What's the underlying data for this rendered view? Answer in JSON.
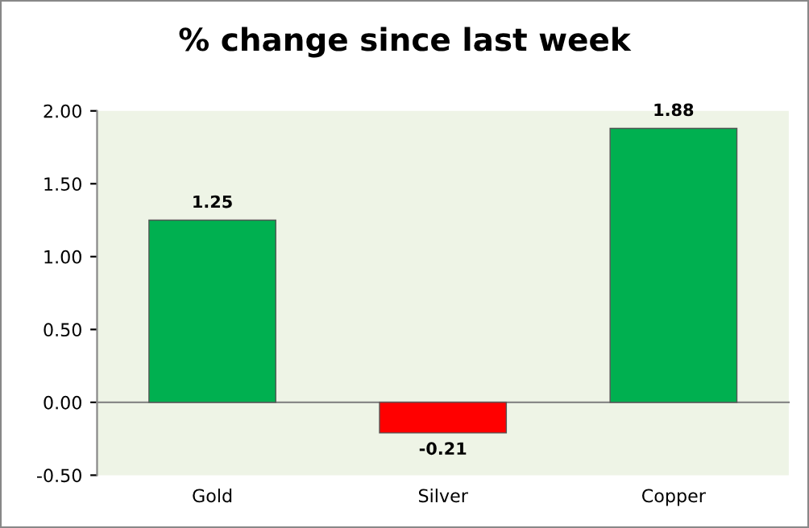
{
  "chart_data": {
    "type": "bar",
    "title": "% change since last week",
    "categories": [
      "Gold",
      "Silver",
      "Copper"
    ],
    "values": [
      1.25,
      -0.21,
      1.88
    ],
    "colors": [
      "#00b050",
      "#ff0000",
      "#00b050"
    ],
    "ylim": [
      -0.5,
      2.0
    ],
    "yticks": [
      {
        "value": -0.5,
        "label": "-0.50"
      },
      {
        "value": 0,
        "label": "0.00"
      },
      {
        "value": 0.5,
        "label": "0.50"
      },
      {
        "value": 1.0,
        "label": "1.00"
      },
      {
        "value": 1.5,
        "label": "1.50"
      },
      {
        "value": 2.0,
        "label": "2.00"
      }
    ],
    "data_labels": true,
    "legend": false
  }
}
